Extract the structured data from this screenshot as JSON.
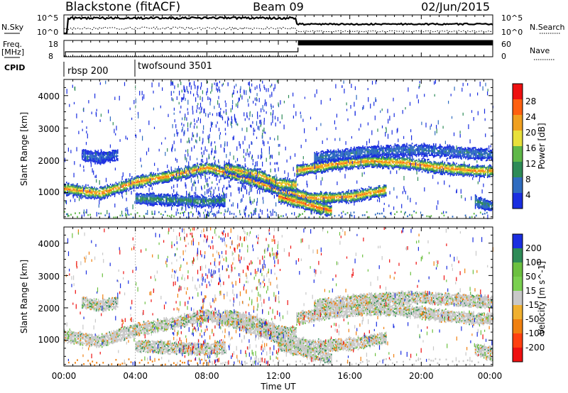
{
  "header": {
    "station": "Blackstone (fitACF)",
    "beam": "Beam 09",
    "date": "02/Jun/2015"
  },
  "nsky": {
    "label": "N.Sky",
    "ticks": [
      "10^5",
      "10^0"
    ],
    "right_label": "N.Search",
    "right_ticks": [
      "10^5",
      "10^0"
    ]
  },
  "freq": {
    "label_line1": "Freq.",
    "label_line2": "[MHz]",
    "ticks": [
      "18",
      "8"
    ],
    "right_label": "Nave",
    "right_ticks": [
      "60",
      "0"
    ],
    "step_time_hr": 13.1
  },
  "cpid": {
    "label": "CPID",
    "segments": [
      {
        "name": "rbsp 200",
        "start_hr": 0,
        "end_hr": 4
      },
      {
        "name": "twofsound 3501",
        "start_hr": 4,
        "end_hr": 24
      }
    ]
  },
  "time_axis": {
    "label": "Time UT",
    "tick_labels": [
      "00:00",
      "04:00",
      "08:00",
      "12:00",
      "16:00",
      "20:00",
      "00:00"
    ]
  },
  "chart_data": [
    {
      "type": "heatmap",
      "name": "power",
      "ylabel": "Slant Range [km]",
      "yticks": [
        "1000",
        "2000",
        "3000",
        "4000"
      ],
      "ylim": [
        200,
        4500
      ],
      "xlim": [
        0,
        24
      ],
      "colorbar": {
        "label": "Power [dB]",
        "tick_labels": [
          "4",
          "8",
          "12",
          "16",
          "20",
          "24",
          "28"
        ],
        "colors": [
          "#1a2ee0",
          "#2f6cc0",
          "#2e8b57",
          "#5fb848",
          "#e8e03a",
          "#f0a020",
          "#ff6010",
          "#ee1010"
        ]
      },
      "bands": [
        {
          "points": [
            [
              0,
              1150
            ],
            [
              2,
              1000
            ],
            [
              4,
              1350
            ],
            [
              6,
              1550
            ],
            [
              8,
              1800
            ],
            [
              10,
              1500
            ],
            [
              12,
              1100
            ],
            [
              13,
              950
            ],
            [
              14,
              850
            ],
            [
              16,
              900
            ],
            [
              18,
              1100
            ]
          ],
          "peak": 24
        },
        {
          "points": [
            [
              4,
              850
            ],
            [
              6,
              800
            ],
            [
              8,
              750
            ],
            [
              9,
              800
            ]
          ],
          "peak": 10
        },
        {
          "points": [
            [
              9,
              1800
            ],
            [
              11,
              1550
            ],
            [
              12,
              1300
            ],
            [
              13,
              1250
            ]
          ],
          "peak": 22
        },
        {
          "points": [
            [
              13,
              1700
            ],
            [
              15,
              1900
            ],
            [
              17,
              2000
            ],
            [
              19,
              1950
            ],
            [
              21,
              1800
            ],
            [
              23,
              1700
            ],
            [
              24,
              1700
            ]
          ],
          "peak": 24
        },
        {
          "points": [
            [
              12,
              900
            ],
            [
              13,
              750
            ],
            [
              14,
              600
            ],
            [
              15,
              450
            ]
          ],
          "peak": 26
        },
        {
          "points": [
            [
              14,
              2100
            ],
            [
              17,
              2300
            ],
            [
              20,
              2350
            ],
            [
              24,
              2200
            ]
          ],
          "peak": 6
        },
        {
          "points": [
            [
              1,
              2200
            ],
            [
              2,
              2100
            ],
            [
              3,
              2200
            ]
          ],
          "peak": 4
        },
        {
          "points": [
            [
              23,
              750
            ],
            [
              24,
              600
            ]
          ],
          "peak": 8
        }
      ]
    },
    {
      "type": "heatmap",
      "name": "velocity",
      "ylabel": "Slant Range [km]",
      "yticks": [
        "1000",
        "2000",
        "3000",
        "4000"
      ],
      "ylim": [
        200,
        4500
      ],
      "xlim": [
        0,
        24
      ],
      "colorbar": {
        "label": "Velocity [m s^-1]",
        "tick_labels": [
          "200",
          "100",
          "50",
          "15",
          "-15",
          "-50",
          "-100",
          "-200"
        ],
        "colors": [
          "#1a2ee0",
          "#2e8b57",
          "#6cc040",
          "#7ad050",
          "#c8c8c8",
          "#f0b030",
          "#f08010",
          "#ff4010",
          "#ee1010"
        ]
      },
      "ground_scatter_color": "#c8c8c8"
    }
  ]
}
